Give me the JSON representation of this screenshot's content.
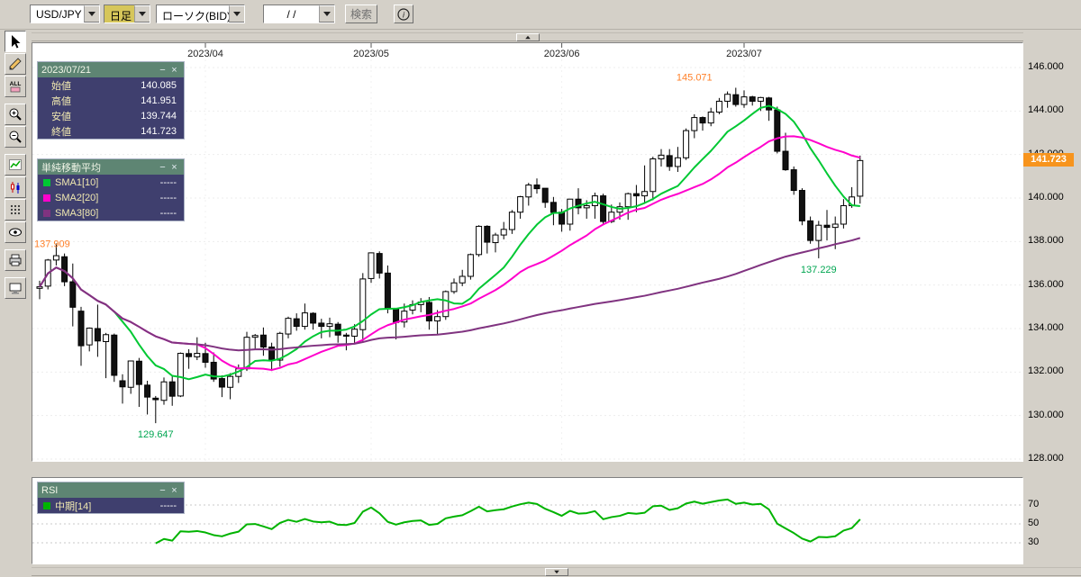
{
  "toolbar": {
    "pair": "USD/JPY",
    "period": "日足",
    "chart_type": "ローソク(BID)",
    "date_value": "  /  /",
    "search_label": "検索",
    "info_label": "i"
  },
  "left_toolbar": {
    "eraser_label": "ALL",
    "icons": [
      "cursor",
      "pencil",
      "eraser-all",
      "zoom-in",
      "zoom-out",
      "line-chart",
      "candlestick",
      "dot-grid",
      "eye",
      "printer",
      "monitor"
    ]
  },
  "quote_window": {
    "title": "2023/07/21",
    "minimize_label": "−",
    "close_label": "×",
    "rows": [
      {
        "label": "始値",
        "value": "140.085"
      },
      {
        "label": "高値",
        "value": "141.951"
      },
      {
        "label": "安値",
        "value": "139.744"
      },
      {
        "label": "終値",
        "value": "141.723"
      }
    ]
  },
  "sma_window": {
    "title": "単純移動平均",
    "minimize_label": "−",
    "close_label": "×",
    "rows": [
      {
        "label": "SMA1[10]",
        "value": "-----",
        "color": "#00c833"
      },
      {
        "label": "SMA2[20]",
        "value": "-----",
        "color": "#ff00cc"
      },
      {
        "label": "SMA3[80]",
        "value": "-----",
        "color": "#803380"
      }
    ]
  },
  "rsi_window": {
    "title": "RSI",
    "minimize_label": "−",
    "close_label": "×",
    "rows": [
      {
        "label": "中期[14]",
        "value": "-----",
        "color": "#00b300"
      }
    ]
  },
  "axes": {
    "price_labels": [
      "146.000",
      "144.000",
      "142.000",
      "140.000",
      "138.000",
      "136.000",
      "134.000",
      "132.000",
      "130.000",
      "128.000"
    ],
    "current_price": "141.723",
    "rsi_labels": [
      "70",
      "50",
      "30"
    ]
  },
  "chart_data": {
    "type": "candlestick",
    "symbol": "USD/JPY",
    "timeframe": "日足",
    "candle_up": "#ffffff",
    "candle_down": "#111111",
    "price_axis": {
      "min": 128,
      "max": 146.5,
      "ticks": [
        146,
        144,
        142,
        140,
        138,
        136,
        134,
        132,
        130,
        128
      ]
    },
    "month_ticks": [
      {
        "label": "2023/04",
        "index": 20
      },
      {
        "label": "2023/05",
        "index": 40
      },
      {
        "label": "2023/06",
        "index": 63
      },
      {
        "label": "2023/07",
        "index": 85
      }
    ],
    "ohlc": [
      [
        135.85,
        136.2,
        135.35,
        135.92
      ],
      [
        135.95,
        137.2,
        135.8,
        137.15
      ],
      [
        137.15,
        137.91,
        136.9,
        137.35
      ],
      [
        137.3,
        137.45,
        135.95,
        136.15
      ],
      [
        136.15,
        136.99,
        134.1,
        134.98
      ],
      [
        134.8,
        135.0,
        132.29,
        133.21
      ],
      [
        133.25,
        134.05,
        132.95,
        134.02
      ],
      [
        134.0,
        135.1,
        132.7,
        133.43
      ],
      [
        133.4,
        133.8,
        131.72,
        133.72
      ],
      [
        133.7,
        133.77,
        131.55,
        131.85
      ],
      [
        131.6,
        131.9,
        130.55,
        131.32
      ],
      [
        131.3,
        132.45,
        131.0,
        132.51
      ],
      [
        132.5,
        132.65,
        130.4,
        131.43
      ],
      [
        131.4,
        131.6,
        130.05,
        130.85
      ],
      [
        130.8,
        130.9,
        129.65,
        130.73
      ],
      [
        130.7,
        131.75,
        130.5,
        131.55
      ],
      [
        131.55,
        131.8,
        130.45,
        130.89
      ],
      [
        130.9,
        132.9,
        130.85,
        132.86
      ],
      [
        132.85,
        133.05,
        132.15,
        132.71
      ],
      [
        132.7,
        133.6,
        132.55,
        132.86
      ],
      [
        132.85,
        133.35,
        132.2,
        132.45
      ],
      [
        132.45,
        132.9,
        131.55,
        131.68
      ],
      [
        131.7,
        131.85,
        130.85,
        131.31
      ],
      [
        131.3,
        131.95,
        130.75,
        131.8
      ],
      [
        131.8,
        132.35,
        131.5,
        132.15
      ],
      [
        132.15,
        133.85,
        132.05,
        133.6
      ],
      [
        133.6,
        133.75,
        133.05,
        133.68
      ],
      [
        133.7,
        134.05,
        132.75,
        133.15
      ],
      [
        133.15,
        133.35,
        132.05,
        132.55
      ],
      [
        132.55,
        133.85,
        132.25,
        133.78
      ],
      [
        133.75,
        134.55,
        133.55,
        134.47
      ],
      [
        134.45,
        134.7,
        133.9,
        134.1
      ],
      [
        134.1,
        135.15,
        133.95,
        134.72
      ],
      [
        134.7,
        134.75,
        133.95,
        134.25
      ],
      [
        134.25,
        134.45,
        133.55,
        134.1
      ],
      [
        134.1,
        134.5,
        133.6,
        134.22
      ],
      [
        134.2,
        134.3,
        133.35,
        133.7
      ],
      [
        133.7,
        133.8,
        133.0,
        133.65
      ],
      [
        133.65,
        134.2,
        133.3,
        133.97
      ],
      [
        133.95,
        136.55,
        133.35,
        136.28
      ],
      [
        136.3,
        137.5,
        136.1,
        137.48
      ],
      [
        137.45,
        137.55,
        136.3,
        136.55
      ],
      [
        136.55,
        136.9,
        134.7,
        134.9
      ],
      [
        134.9,
        134.95,
        133.5,
        134.28
      ],
      [
        134.3,
        135.15,
        134.05,
        134.8
      ],
      [
        134.85,
        135.3,
        134.65,
        135.1
      ],
      [
        135.1,
        135.4,
        134.75,
        135.22
      ],
      [
        135.2,
        135.45,
        133.95,
        134.35
      ],
      [
        134.35,
        134.85,
        133.75,
        134.55
      ],
      [
        134.55,
        135.75,
        134.4,
        135.7
      ],
      [
        135.7,
        136.3,
        135.6,
        136.1
      ],
      [
        136.1,
        136.7,
        135.95,
        136.4
      ],
      [
        136.4,
        137.45,
        136.25,
        137.4
      ],
      [
        137.4,
        138.75,
        137.3,
        138.7
      ],
      [
        138.7,
        138.75,
        137.45,
        137.97
      ],
      [
        137.95,
        138.4,
        137.5,
        138.3
      ],
      [
        138.3,
        138.9,
        138.1,
        138.56
      ],
      [
        138.55,
        139.45,
        138.35,
        139.35
      ],
      [
        139.35,
        140.1,
        139.05,
        140.06
      ],
      [
        140.05,
        140.7,
        139.65,
        140.6
      ],
      [
        140.6,
        140.9,
        140.2,
        140.43
      ],
      [
        140.45,
        140.45,
        139.55,
        139.8
      ],
      [
        139.8,
        140.05,
        138.75,
        139.34
      ],
      [
        139.35,
        139.5,
        138.45,
        138.8
      ],
      [
        138.8,
        139.95,
        138.5,
        139.95
      ],
      [
        139.95,
        140.45,
        139.25,
        139.55
      ],
      [
        139.55,
        139.9,
        139.05,
        139.65
      ],
      [
        139.65,
        140.25,
        139.05,
        140.1
      ],
      [
        140.1,
        140.2,
        138.75,
        138.92
      ],
      [
        138.92,
        139.7,
        138.85,
        139.35
      ],
      [
        139.35,
        139.8,
        139.0,
        139.6
      ],
      [
        139.6,
        140.25,
        139.0,
        140.2
      ],
      [
        140.2,
        140.6,
        139.35,
        140.1
      ],
      [
        140.1,
        141.5,
        139.8,
        140.3
      ],
      [
        140.3,
        141.9,
        139.9,
        141.8
      ],
      [
        141.8,
        142.25,
        141.45,
        141.97
      ],
      [
        141.95,
        142.25,
        141.25,
        141.45
      ],
      [
        141.45,
        142.35,
        141.2,
        141.85
      ],
      [
        141.85,
        143.2,
        141.75,
        143.1
      ],
      [
        143.1,
        143.85,
        142.75,
        143.7
      ],
      [
        143.7,
        143.75,
        143.1,
        143.45
      ],
      [
        143.45,
        144.15,
        143.3,
        143.95
      ],
      [
        143.95,
        144.6,
        143.85,
        144.45
      ],
      [
        144.45,
        144.9,
        144.15,
        144.77
      ],
      [
        144.75,
        145.07,
        144.2,
        144.3
      ],
      [
        144.3,
        144.95,
        144.15,
        144.65
      ],
      [
        144.65,
        144.7,
        144.25,
        144.45
      ],
      [
        144.45,
        144.65,
        144.0,
        144.62
      ],
      [
        144.6,
        144.65,
        143.55,
        144.05
      ],
      [
        144.05,
        144.2,
        142.05,
        142.15
      ],
      [
        142.15,
        143.0,
        141.25,
        141.3
      ],
      [
        141.3,
        141.45,
        140.15,
        140.35
      ],
      [
        140.35,
        140.45,
        138.75,
        138.95
      ],
      [
        138.95,
        139.15,
        137.9,
        138.05
      ],
      [
        138.05,
        138.95,
        137.23,
        138.75
      ],
      [
        138.75,
        139.45,
        138.05,
        138.65
      ],
      [
        138.65,
        139.15,
        137.65,
        138.8
      ],
      [
        138.8,
        139.95,
        138.6,
        139.65
      ],
      [
        139.65,
        140.5,
        139.55,
        140.05
      ],
      [
        140.085,
        141.951,
        139.744,
        141.723
      ]
    ],
    "overlays": [
      {
        "name": "SMA1",
        "period": 10,
        "color": "#00c833"
      },
      {
        "name": "SMA2",
        "period": 20,
        "color": "#ff00cc"
      },
      {
        "name": "SMA3",
        "period": 80,
        "color": "#803380"
      }
    ],
    "annotations": [
      {
        "text": "137.909",
        "index": 2,
        "price": 137.909,
        "color": "#ff7f27",
        "placement": "left"
      },
      {
        "text": "129.647",
        "index": 14,
        "price": 129.647,
        "color": "#00a651",
        "placement": "below"
      },
      {
        "text": "145.071",
        "index": 79,
        "price": 145.071,
        "color": "#ff7f27",
        "placement": "above"
      },
      {
        "text": "137.229",
        "index": 94,
        "price": 137.229,
        "color": "#00a651",
        "placement": "below"
      }
    ],
    "rsi": {
      "name": "中期",
      "period": 14,
      "color": "#00b300",
      "ticks": [
        70,
        50,
        30
      ]
    },
    "last_close": 141.723
  }
}
